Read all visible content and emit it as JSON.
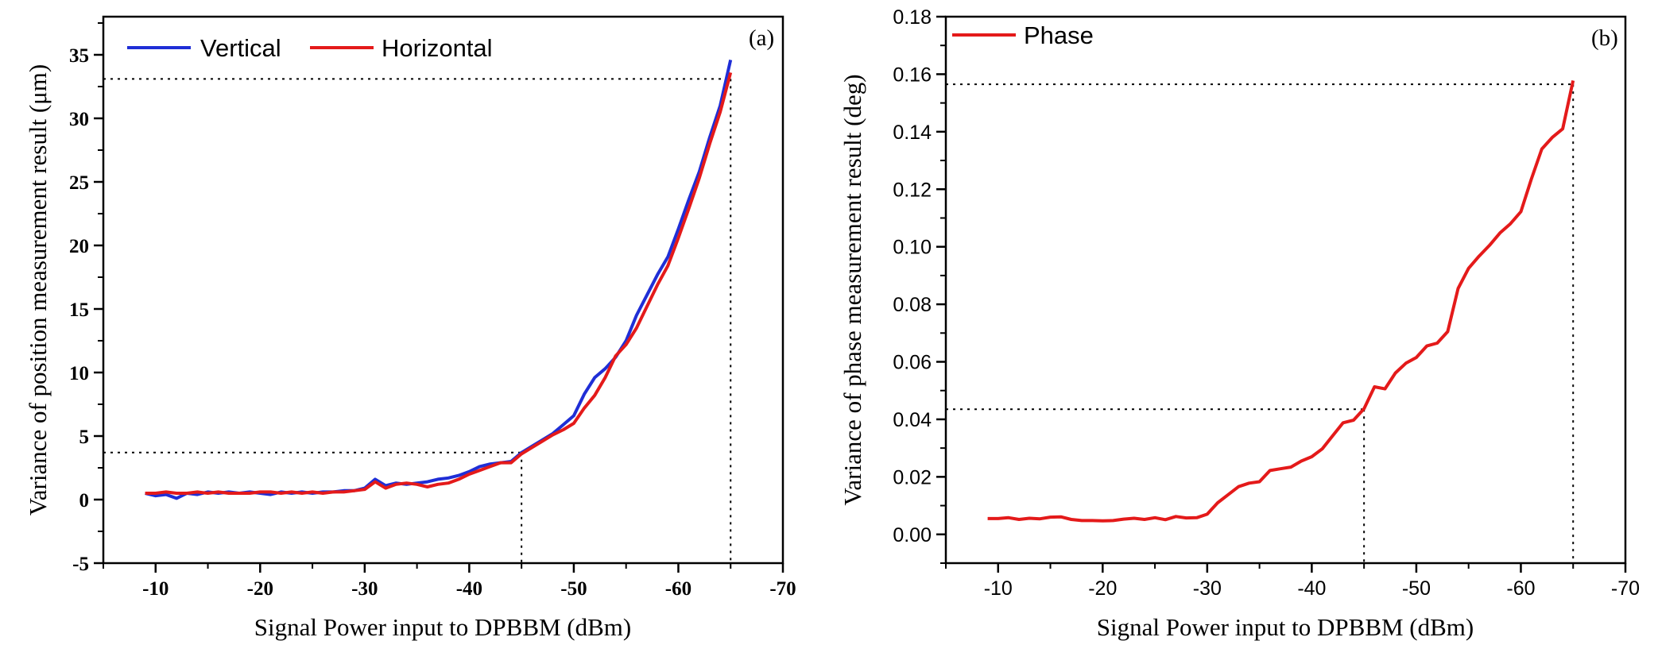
{
  "chart_data": [
    {
      "type": "line",
      "panel_label": "(a)",
      "xlabel": "Signal Power input to DPBBM (dBm)",
      "ylabel": "Variance of position measurement result (μm)",
      "xlim": [
        -5,
        -70
      ],
      "ylim": [
        -5,
        38
      ],
      "xticks": [
        -10,
        -20,
        -30,
        -40,
        -50,
        -60,
        -70
      ],
      "yticks": [
        -5,
        0,
        5,
        10,
        15,
        20,
        25,
        30,
        35
      ],
      "xtick_labels": [
        "-10",
        "-20",
        "-30",
        "-40",
        "-50",
        "-60",
        "-70"
      ],
      "ytick_labels": [
        "-5",
        "0",
        "5",
        "10",
        "15",
        "20",
        "25",
        "30",
        "35"
      ],
      "legend": {
        "position": "top-left",
        "entries": [
          "Vertical",
          "Horizontal"
        ]
      },
      "series": [
        {
          "name": "Vertical",
          "color": "#1f2ed6",
          "x": [
            -9,
            -10,
            -11,
            -12,
            -13,
            -14,
            -15,
            -16,
            -17,
            -18,
            -19,
            -20,
            -21,
            -22,
            -23,
            -24,
            -25,
            -26,
            -27,
            -28,
            -29,
            -30,
            -31,
            -32,
            -33,
            -34,
            -35,
            -36,
            -37,
            -38,
            -39,
            -40,
            -41,
            -42,
            -43,
            -44,
            -45,
            -46,
            -47,
            -48,
            -49,
            -50,
            -51,
            -52,
            -53,
            -54,
            -55,
            -56,
            -57,
            -58,
            -59,
            -60,
            -61,
            -62,
            -63,
            -64,
            -65
          ],
          "y": [
            0.5,
            0.3,
            0.4,
            0.1,
            0.5,
            0.4,
            0.6,
            0.5,
            0.6,
            0.5,
            0.6,
            0.5,
            0.4,
            0.6,
            0.5,
            0.6,
            0.5,
            0.6,
            0.6,
            0.7,
            0.7,
            0.9,
            1.6,
            1.1,
            1.3,
            1.2,
            1.3,
            1.4,
            1.6,
            1.7,
            1.9,
            2.2,
            2.6,
            2.8,
            2.9,
            3.0,
            3.7,
            4.2,
            4.7,
            5.2,
            5.9,
            6.6,
            8.3,
            9.6,
            10.3,
            11.2,
            12.5,
            14.5,
            16.1,
            17.7,
            19.1,
            21.3,
            23.6,
            25.8,
            28.5,
            31.0,
            34.6
          ]
        },
        {
          "name": "Horizontal",
          "color": "#e41a1a",
          "x": [
            -9,
            -10,
            -11,
            -12,
            -13,
            -14,
            -15,
            -16,
            -17,
            -18,
            -19,
            -20,
            -21,
            -22,
            -23,
            -24,
            -25,
            -26,
            -27,
            -28,
            -29,
            -30,
            -31,
            -32,
            -33,
            -34,
            -35,
            -36,
            -37,
            -38,
            -39,
            -40,
            -41,
            -42,
            -43,
            -44,
            -45,
            -46,
            -47,
            -48,
            -49,
            -50,
            -51,
            -52,
            -53,
            -54,
            -55,
            -56,
            -57,
            -58,
            -59,
            -60,
            -61,
            -62,
            -63,
            -64,
            -65
          ],
          "y": [
            0.5,
            0.5,
            0.6,
            0.5,
            0.5,
            0.6,
            0.5,
            0.6,
            0.5,
            0.5,
            0.5,
            0.6,
            0.6,
            0.5,
            0.6,
            0.5,
            0.6,
            0.5,
            0.6,
            0.6,
            0.7,
            0.8,
            1.4,
            0.9,
            1.2,
            1.3,
            1.2,
            1.0,
            1.2,
            1.3,
            1.6,
            2.0,
            2.3,
            2.6,
            2.9,
            2.9,
            3.6,
            4.1,
            4.6,
            5.1,
            5.5,
            6.0,
            7.2,
            8.2,
            9.6,
            11.3,
            12.2,
            13.5,
            15.2,
            16.9,
            18.4,
            20.6,
            22.9,
            25.3,
            28.0,
            30.5,
            33.6
          ]
        }
      ],
      "reference_lines": [
        {
          "x": -45,
          "y": 3.7
        },
        {
          "x": -65,
          "y": 33.1
        }
      ]
    },
    {
      "type": "line",
      "panel_label": "(b)",
      "xlabel": "Signal Power input to DPBBM (dBm)",
      "ylabel": "Variance of phase measurement result (deg)",
      "xlim": [
        -5,
        -70
      ],
      "ylim": [
        -0.01,
        0.18
      ],
      "xticks": [
        -10,
        -20,
        -30,
        -40,
        -50,
        -60,
        -70
      ],
      "yticks": [
        0.0,
        0.02,
        0.04,
        0.06,
        0.08,
        0.1,
        0.12,
        0.14,
        0.16,
        0.18
      ],
      "xtick_labels": [
        "-10",
        "-20",
        "-30",
        "-40",
        "-50",
        "-60",
        "-70"
      ],
      "ytick_labels": [
        "0.00",
        "0.02",
        "0.04",
        "0.06",
        "0.08",
        "0.10",
        "0.12",
        "0.14",
        "0.16",
        "0.18"
      ],
      "legend": {
        "position": "top-left",
        "entries": [
          "Phase"
        ]
      },
      "series": [
        {
          "name": "Phase",
          "color": "#e41a1a",
          "x": [
            -9,
            -10,
            -11,
            -12,
            -13,
            -14,
            -15,
            -16,
            -17,
            -18,
            -19,
            -20,
            -21,
            -22,
            -23,
            -24,
            -25,
            -26,
            -27,
            -28,
            -29,
            -30,
            -31,
            -32,
            -33,
            -34,
            -35,
            -36,
            -37,
            -38,
            -39,
            -40,
            -41,
            -42,
            -43,
            -44,
            -45,
            -46,
            -47,
            -48,
            -49,
            -50,
            -51,
            -52,
            -53,
            -54,
            -55,
            -56,
            -57,
            -58,
            -59,
            -60,
            -61,
            -62,
            -63,
            -64,
            -65
          ],
          "y": [
            0.0055,
            0.0055,
            0.0058,
            0.0052,
            0.0056,
            0.0054,
            0.006,
            0.0061,
            0.0052,
            0.0048,
            0.0048,
            0.0047,
            0.0048,
            0.0053,
            0.0056,
            0.0052,
            0.0058,
            0.0051,
            0.0062,
            0.0057,
            0.0058,
            0.007,
            0.011,
            0.0138,
            0.0166,
            0.0178,
            0.0183,
            0.0222,
            0.0228,
            0.0234,
            0.0255,
            0.027,
            0.0297,
            0.0343,
            0.0388,
            0.0397,
            0.0437,
            0.0513,
            0.0506,
            0.0561,
            0.0595,
            0.0615,
            0.0655,
            0.0665,
            0.0705,
            0.0855,
            0.0925,
            0.0967,
            0.1005,
            0.1048,
            0.108,
            0.1122,
            0.1235,
            0.134,
            0.138,
            0.141,
            0.1578
          ]
        }
      ],
      "reference_lines": [
        {
          "x": -45,
          "y": 0.0435
        },
        {
          "x": -65,
          "y": 0.1565
        }
      ]
    }
  ]
}
